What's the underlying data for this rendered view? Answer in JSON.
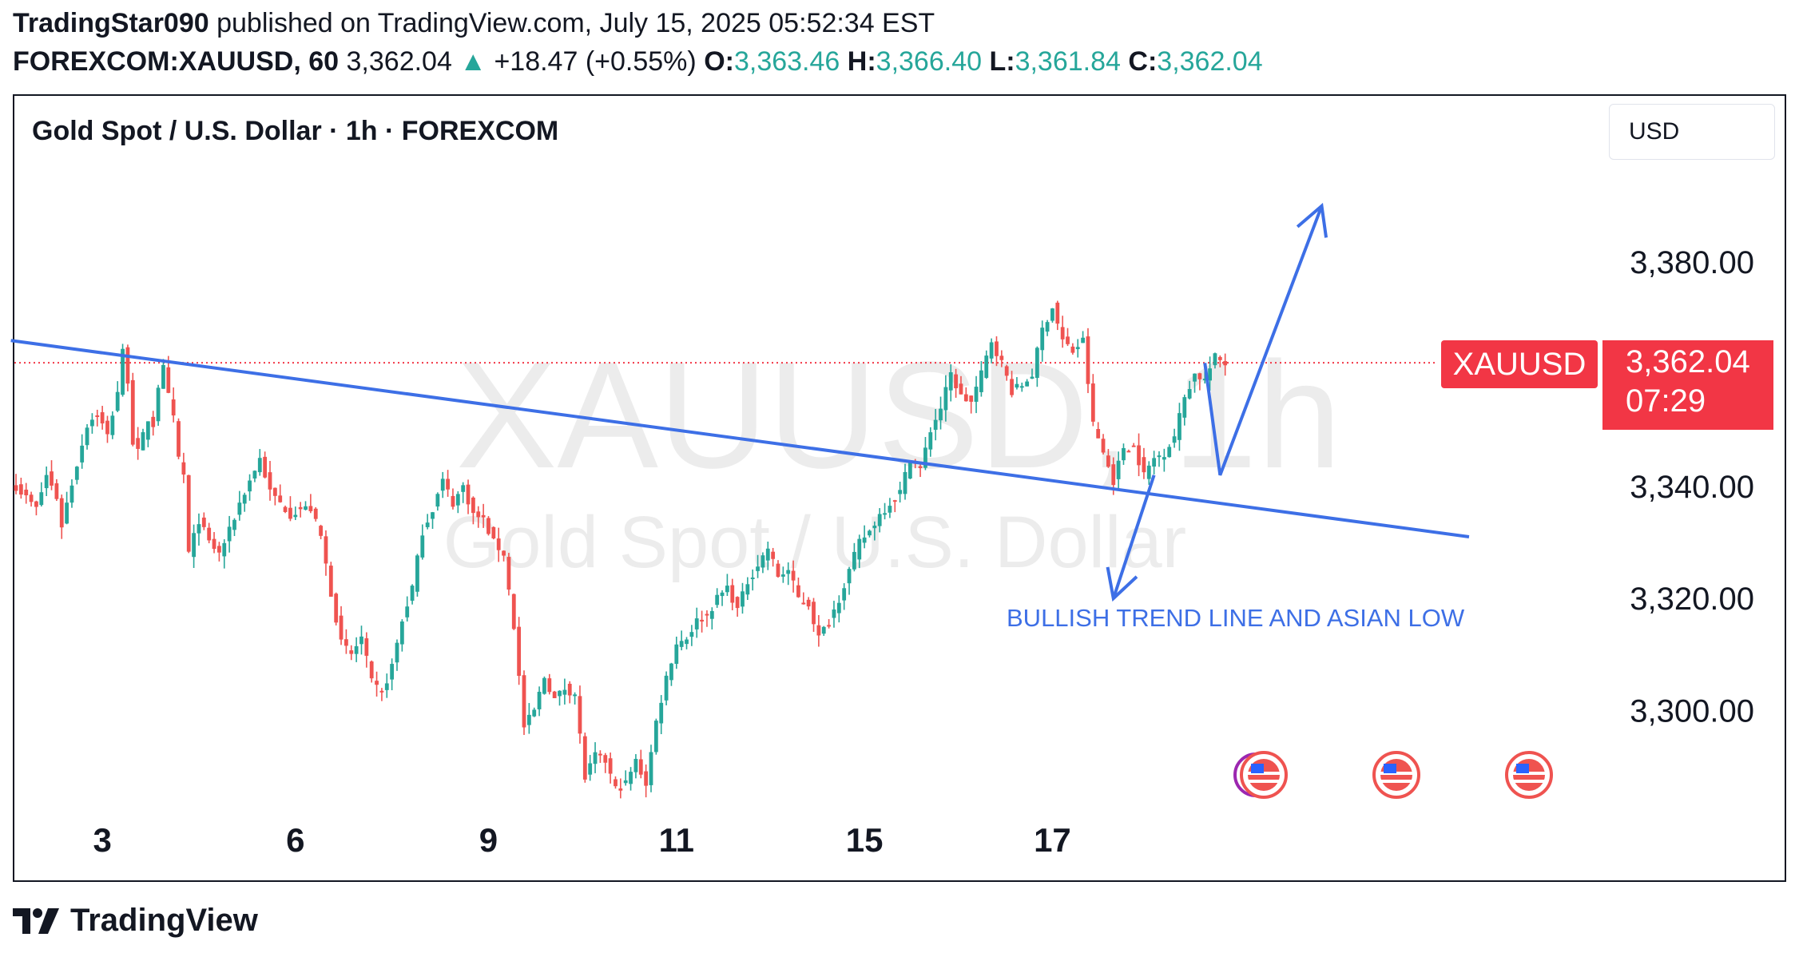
{
  "header": {
    "author": "TradingStar090",
    "published_text": "published on TradingView.com, July 15, 2025 05:52:34 EST",
    "symbol": "FOREXCOM:XAUUSD, 60",
    "last": "3,362.04",
    "up_arrow": "▲",
    "change": "+18.47 (+0.55%)",
    "o_label": "O:",
    "o_value": "3,363.46",
    "h_label": "H:",
    "h_value": "3,366.40",
    "l_label": "L:",
    "l_value": "3,361.84",
    "c_label": "C:",
    "c_value": "3,362.04"
  },
  "chart_title": "Gold Spot / U.S. Dollar · 1h · FOREXCOM",
  "currency_button": "USD",
  "watermark": {
    "line1": "XAUUSD, 1h",
    "line2": "Gold Spot / U.S. Dollar"
  },
  "annotation": "BULLISH TREND LINE AND ASIAN LOW",
  "price_tag": {
    "symbol": "XAUUSD",
    "price": "3,362.04",
    "countdown": "07:29"
  },
  "footer": {
    "brand": "TradingView",
    "logo_icon": "tradingview-logo-icon"
  },
  "colors": {
    "up": "#26a69a",
    "down": "#ef5350",
    "drawing": "#3d6fe6",
    "tag": "#f23645"
  },
  "chart_data": {
    "type": "candlestick",
    "title": "Gold Spot / U.S. Dollar · 1h · FOREXCOM",
    "y_ticks": [
      "3,380.00",
      "3,340.00",
      "3,320.00",
      "3,300.00"
    ],
    "y_tick_values": [
      3380,
      3340,
      3320,
      3300
    ],
    "x_ticks": [
      "3",
      "6",
      "9",
      "11",
      "15",
      "17"
    ],
    "current_price": 3362.04,
    "anchors": [
      [
        0,
        3340
      ],
      [
        2,
        3338
      ],
      [
        4,
        3336
      ],
      [
        6,
        3342
      ],
      [
        8,
        3338
      ],
      [
        9,
        3333
      ],
      [
        10,
        3337
      ],
      [
        12,
        3344
      ],
      [
        14,
        3351
      ],
      [
        16,
        3353
      ],
      [
        18,
        3349
      ],
      [
        20,
        3357
      ],
      [
        21,
        3364
      ],
      [
        22,
        3359
      ],
      [
        23,
        3348
      ],
      [
        24,
        3346
      ],
      [
        26,
        3352
      ],
      [
        27,
        3351
      ],
      [
        28,
        3358
      ],
      [
        29,
        3361
      ],
      [
        30,
        3356
      ],
      [
        31,
        3352
      ],
      [
        32,
        3345
      ],
      [
        33,
        3342
      ],
      [
        34,
        3328
      ],
      [
        36,
        3334
      ],
      [
        38,
        3330
      ],
      [
        40,
        3328
      ],
      [
        42,
        3332
      ],
      [
        44,
        3337
      ],
      [
        46,
        3341
      ],
      [
        48,
        3345
      ],
      [
        50,
        3339
      ],
      [
        52,
        3337
      ],
      [
        54,
        3335
      ],
      [
        56,
        3336
      ],
      [
        58,
        3336
      ],
      [
        60,
        3331
      ],
      [
        62,
        3321
      ],
      [
        64,
        3312
      ],
      [
        66,
        3310
      ],
      [
        68,
        3313
      ],
      [
        70,
        3305
      ],
      [
        72,
        3303
      ],
      [
        74,
        3308
      ],
      [
        76,
        3316
      ],
      [
        78,
        3322
      ],
      [
        80,
        3332
      ],
      [
        82,
        3336
      ],
      [
        84,
        3341
      ],
      [
        86,
        3337
      ],
      [
        88,
        3340
      ],
      [
        90,
        3335
      ],
      [
        92,
        3334
      ],
      [
        94,
        3330
      ],
      [
        96,
        3328
      ],
      [
        98,
        3315
      ],
      [
        100,
        3297
      ],
      [
        102,
        3300
      ],
      [
        104,
        3306
      ],
      [
        106,
        3302
      ],
      [
        108,
        3304
      ],
      [
        110,
        3303
      ],
      [
        112,
        3288
      ],
      [
        114,
        3292
      ],
      [
        116,
        3291
      ],
      [
        118,
        3286
      ],
      [
        120,
        3287
      ],
      [
        122,
        3291
      ],
      [
        124,
        3287
      ],
      [
        126,
        3298
      ],
      [
        128,
        3306
      ],
      [
        130,
        3312
      ],
      [
        132,
        3313
      ],
      [
        134,
        3316
      ],
      [
        136,
        3317
      ],
      [
        138,
        3320
      ],
      [
        140,
        3322
      ],
      [
        142,
        3318
      ],
      [
        144,
        3323
      ],
      [
        146,
        3326
      ],
      [
        148,
        3329
      ],
      [
        150,
        3324
      ],
      [
        152,
        3325
      ],
      [
        154,
        3320
      ],
      [
        156,
        3319
      ],
      [
        158,
        3313
      ],
      [
        160,
        3316
      ],
      [
        162,
        3320
      ],
      [
        164,
        3325
      ],
      [
        166,
        3330
      ],
      [
        168,
        3332
      ],
      [
        170,
        3335
      ],
      [
        172,
        3337
      ],
      [
        174,
        3339
      ],
      [
        176,
        3345
      ],
      [
        178,
        3343
      ],
      [
        180,
        3350
      ],
      [
        182,
        3354
      ],
      [
        184,
        3360
      ],
      [
        186,
        3356
      ],
      [
        188,
        3355
      ],
      [
        190,
        3360
      ],
      [
        192,
        3366
      ],
      [
        194,
        3362
      ],
      [
        196,
        3357
      ],
      [
        198,
        3358
      ],
      [
        200,
        3360
      ],
      [
        202,
        3368
      ],
      [
        204,
        3372
      ],
      [
        206,
        3366
      ],
      [
        208,
        3364
      ],
      [
        210,
        3366
      ],
      [
        212,
        3351
      ],
      [
        214,
        3346
      ],
      [
        216,
        3341
      ],
      [
        218,
        3347
      ],
      [
        220,
        3347
      ],
      [
        222,
        3342
      ],
      [
        224,
        3345
      ],
      [
        226,
        3346
      ],
      [
        228,
        3349
      ],
      [
        230,
        3356
      ],
      [
        232,
        3360
      ],
      [
        234,
        3359
      ],
      [
        236,
        3363
      ],
      [
        238,
        3362
      ]
    ],
    "trend_line": {
      "start": [
        -1,
        3366
      ],
      "end": [
        286,
        3331
      ]
    },
    "arrows": [
      {
        "from": [
          224,
          3342
        ],
        "to": [
          216,
          3320
        ],
        "name": "asian-low-arrow"
      },
      {
        "from": [
          234,
          3362
        ],
        "via": [
          237,
          3342
        ],
        "to": [
          257,
          3390
        ],
        "name": "bullish-projection-arrow"
      }
    ]
  }
}
